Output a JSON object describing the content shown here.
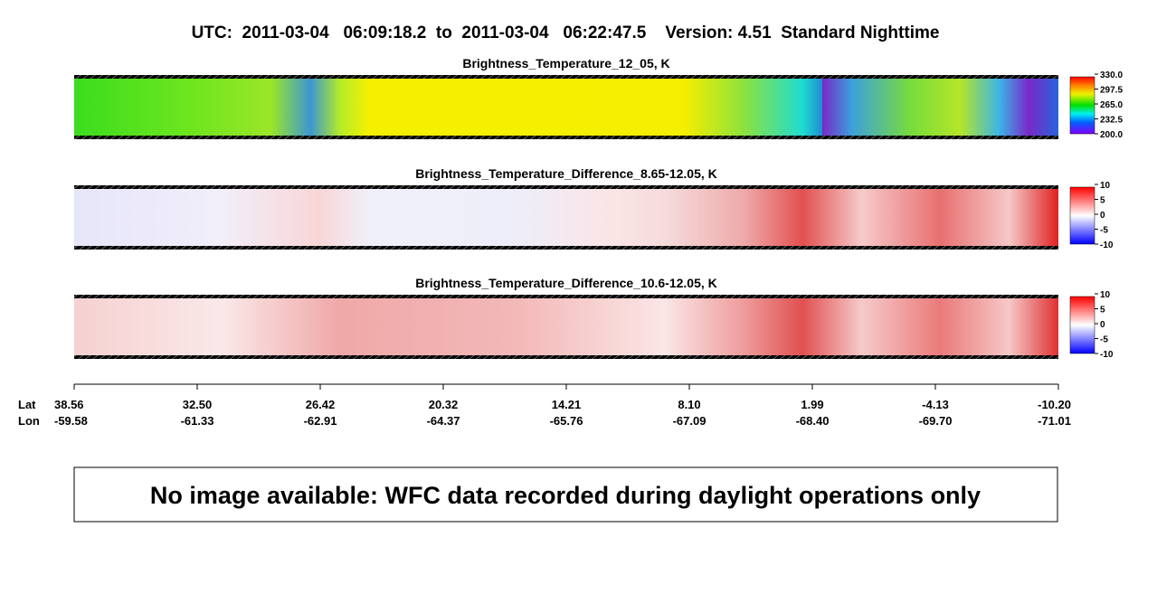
{
  "header": {
    "title": "UTC:  2011-03-04   06:09:18.2  to  2011-03-04   06:22:47.5    Version: 4.51  Standard Nighttime"
  },
  "panels": [
    {
      "title": "Brightness_Temperature_12_05, K",
      "colorbar": [
        "330.0",
        "297.5",
        "265.0",
        "232.5",
        "200.0"
      ]
    },
    {
      "title": "Brightness_Temperature_Difference_8.65-12.05, K",
      "colorbar": [
        "10",
        "5",
        "0",
        "-5",
        "-10"
      ]
    },
    {
      "title": "Brightness_Temperature_Difference_10.6-12.05, K",
      "colorbar": [
        "10",
        "5",
        "0",
        "-5",
        "-10"
      ]
    }
  ],
  "axis": {
    "lat_label": "Lat",
    "lon_label": "Lon",
    "lat": [
      "38.56",
      "32.50",
      "26.42",
      "20.32",
      "14.21",
      "8.10",
      "1.99",
      "-4.13",
      "-10.20"
    ],
    "lon": [
      "-59.58",
      "-61.33",
      "-62.91",
      "-64.37",
      "-65.76",
      "-67.09",
      "-68.40",
      "-69.70",
      "-71.01"
    ]
  },
  "notice": "No image available: WFC data recorded during daylight operations only"
}
